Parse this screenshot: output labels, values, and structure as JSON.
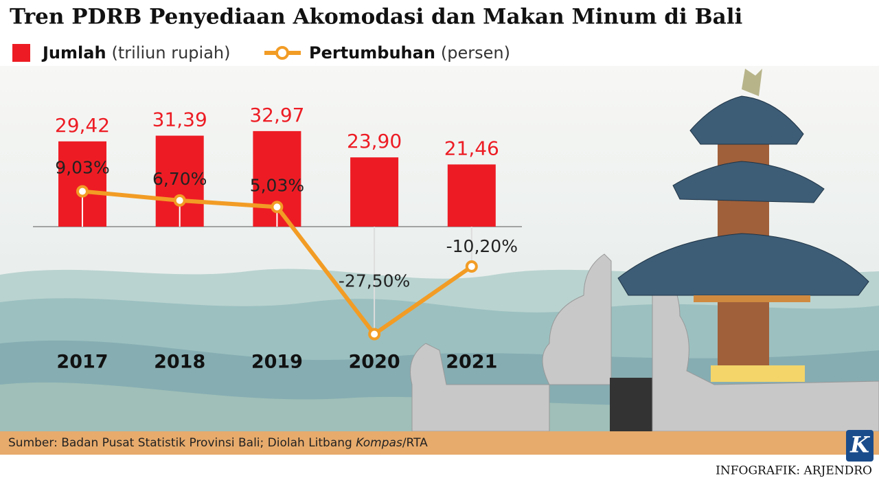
{
  "chart_data": {
    "type": "bar_line",
    "title": "Tren PDRB Penyediaan Akomodasi dan Makan Minum di Bali",
    "categories": [
      "2017",
      "2018",
      "2019",
      "2020",
      "2021"
    ],
    "series": [
      {
        "name": "Jumlah",
        "unit": "(triliun rupiah)",
        "type": "bar",
        "color": "#ed1c24",
        "values": [
          29.42,
          31.39,
          32.97,
          23.9,
          21.46
        ],
        "value_labels": [
          "29,42",
          "31,39",
          "32,97",
          "23,90",
          "21,46"
        ]
      },
      {
        "name": "Pertumbuhan",
        "unit": "(persen)",
        "type": "line",
        "color": "#f29c25",
        "axis": "y2",
        "values": [
          9.03,
          6.7,
          5.03,
          -27.5,
          -10.2
        ],
        "value_labels": [
          "9,03%",
          "6,70%",
          "5,03%",
          "-27,50%",
          "-10,20%"
        ]
      }
    ],
    "source": {
      "prefix": "Sumber: Badan Pusat Statistik Provinsi Bali; Diolah Litbang ",
      "italic": "Kompas",
      "suffix": "/RTA"
    },
    "credit": "INFOGRAFIK: ARJENDRO",
    "logo": "K"
  }
}
